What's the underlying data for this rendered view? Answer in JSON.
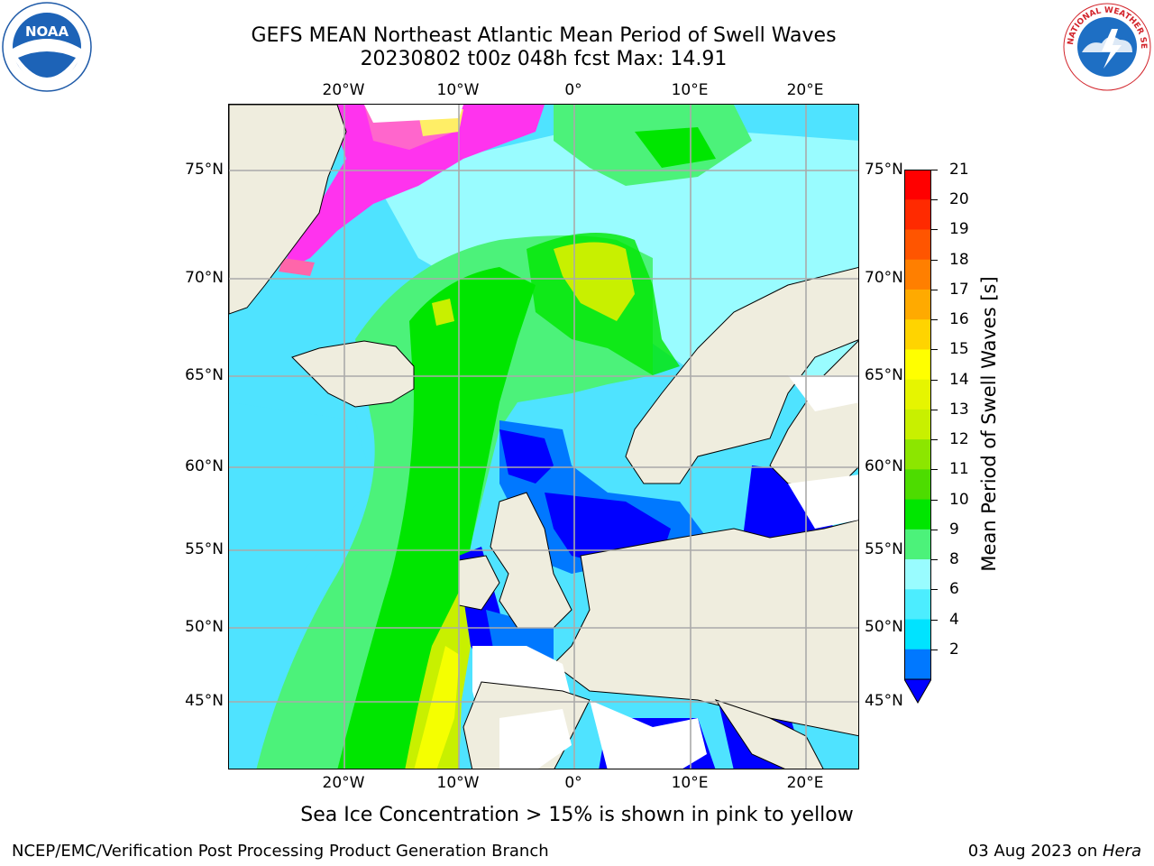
{
  "header": {
    "title_line1": "GEFS MEAN Northeast Atlantic Mean Period of Swell Waves",
    "title_line2": "20230802 t00z 048h fcst   Max: 14.91"
  },
  "map": {
    "lon_labels": [
      "20°W",
      "10°W",
      "0°",
      "10°E",
      "20°E"
    ],
    "lat_labels": [
      "75°N",
      "70°N",
      "65°N",
      "60°N",
      "55°N",
      "50°N",
      "45°N"
    ]
  },
  "colorbar": {
    "title": "Mean Period of Swell Waves [s]",
    "ticks": [
      "21",
      "20",
      "19",
      "18",
      "17",
      "16",
      "15",
      "14",
      "13",
      "12",
      "11",
      "10",
      "9",
      "8",
      "6",
      "4",
      "2"
    ],
    "colors": [
      "#ff0000",
      "#ff2a00",
      "#ff5500",
      "#ff7f00",
      "#ffaa00",
      "#ffd400",
      "#ffff00",
      "#e6f500",
      "#c8f000",
      "#8ce600",
      "#4ddc00",
      "#00e600",
      "#4cf27a",
      "#99fcff",
      "#4cedff",
      "#00e3ff",
      "#0078ff",
      "#0000ff"
    ]
  },
  "palette": {
    "land": "#efedde",
    "ocean_base": "#4fe3ff",
    "light_cyan": "#99fcff",
    "green_light": "#4cf27a",
    "green": "#00e600",
    "yellow_green": "#c8f000",
    "yellow": "#f5ff00",
    "blue": "#0000ff",
    "mid_blue": "#0078ff",
    "ice_pink": "#ff66cc",
    "ice_magenta": "#ff33ee"
  },
  "footer": {
    "caption": "Sea Ice Concentration > 15% is shown in pink to yellow",
    "credit": "NCEP/EMC/Verification Post Processing Product Generation Branch",
    "date_prefix": "03 Aug 2023 on ",
    "date_host": "Hera"
  },
  "logos": {
    "noaa_text": "NOAA",
    "nws_text": "NATIONAL WEATHER SERVICE"
  }
}
